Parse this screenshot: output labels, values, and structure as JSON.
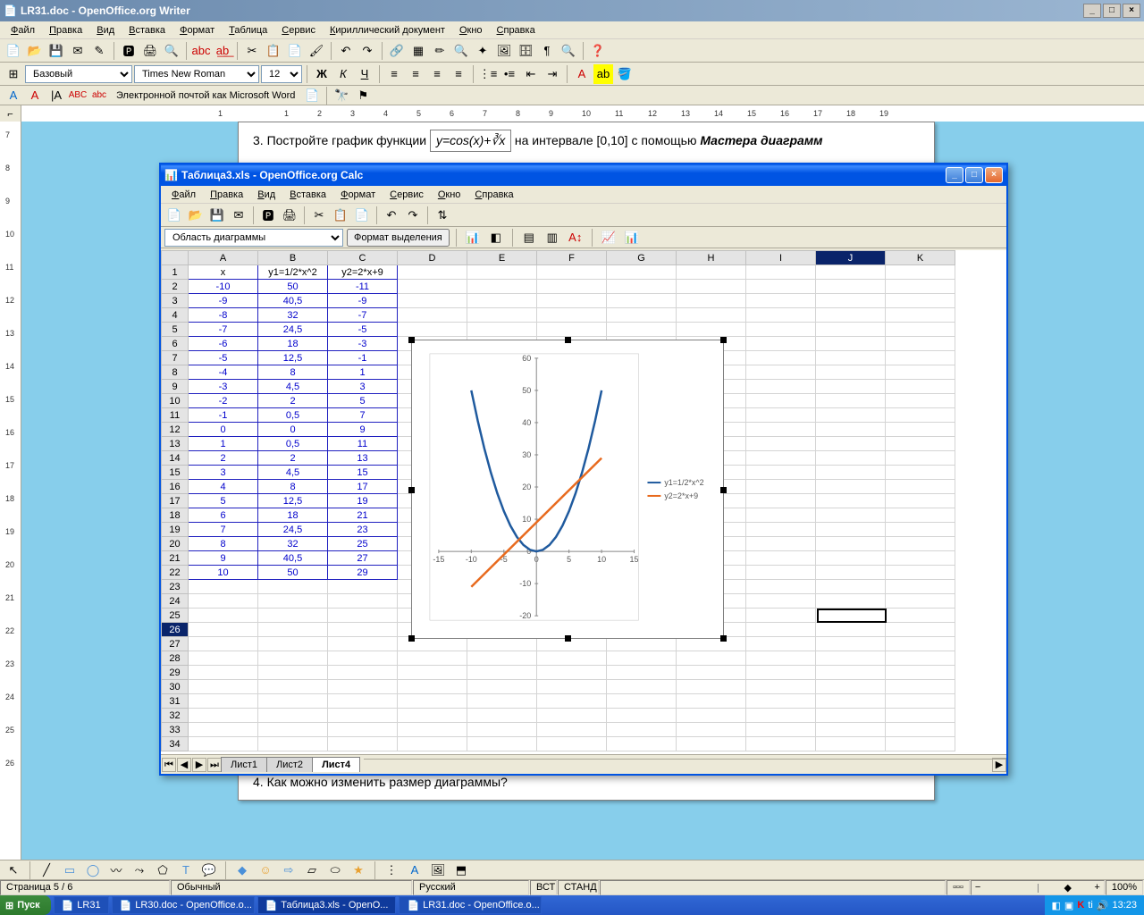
{
  "writer": {
    "title": "LR31.doc - OpenOffice.org Writer",
    "menu": [
      "Файл",
      "Правка",
      "Вид",
      "Вставка",
      "Формат",
      "Таблица",
      "Сервис",
      "Кириллический документ",
      "Окно",
      "Справка"
    ],
    "style_combo": "Базовый",
    "font_combo": "Times New Roman",
    "size_combo": "12",
    "hyperlink_label": "Электронной почтой как Microsoft Word",
    "doc_line1_prefix": "3. Постройте график функции ",
    "doc_line1_formula": "y=cos(x)+∛x",
    "doc_line1_suffix": "  на интервале  [0,10]  с помощью ",
    "doc_line1_italic": "Мастера диаграмм",
    "doc_line2": "4. Как можно изменить размер диаграммы?",
    "ruler_marks": [
      "1",
      "",
      "1",
      "2",
      "3",
      "4",
      "5",
      "6",
      "7",
      "8",
      "9",
      "10",
      "11",
      "12",
      "13",
      "14",
      "15",
      "16",
      "17",
      "18",
      "19"
    ],
    "vruler_marks": [
      "7",
      "8",
      "9",
      "10",
      "11",
      "12",
      "13",
      "14",
      "15",
      "16",
      "17",
      "18",
      "19",
      "20",
      "21",
      "22",
      "23",
      "24",
      "25",
      "26"
    ]
  },
  "calc": {
    "title": "Таблица3.xls - OpenOffice.org Calc",
    "menu": [
      "Файл",
      "Правка",
      "Вид",
      "Вставка",
      "Формат",
      "Сервис",
      "Окно",
      "Справка"
    ],
    "namebox": "Область диаграммы",
    "format_btn": "Формат выделения",
    "columns": [
      "A",
      "B",
      "C",
      "D",
      "E",
      "F",
      "G",
      "H",
      "I",
      "J",
      "K"
    ],
    "headers": [
      "x",
      "y1=1/2*x^2",
      "y2=2*x+9"
    ],
    "rows": [
      [
        "-10",
        "50",
        "-11"
      ],
      [
        "-9",
        "40,5",
        "-9"
      ],
      [
        "-8",
        "32",
        "-7"
      ],
      [
        "-7",
        "24,5",
        "-5"
      ],
      [
        "-6",
        "18",
        "-3"
      ],
      [
        "-5",
        "12,5",
        "-1"
      ],
      [
        "-4",
        "8",
        "1"
      ],
      [
        "-3",
        "4,5",
        "3"
      ],
      [
        "-2",
        "2",
        "5"
      ],
      [
        "-1",
        "0,5",
        "7"
      ],
      [
        "0",
        "0",
        "9"
      ],
      [
        "1",
        "0,5",
        "11"
      ],
      [
        "2",
        "2",
        "13"
      ],
      [
        "3",
        "4,5",
        "15"
      ],
      [
        "4",
        "8",
        "17"
      ],
      [
        "5",
        "12,5",
        "19"
      ],
      [
        "6",
        "18",
        "21"
      ],
      [
        "7",
        "24,5",
        "23"
      ],
      [
        "8",
        "32",
        "25"
      ],
      [
        "9",
        "40,5",
        "27"
      ],
      [
        "10",
        "50",
        "29"
      ]
    ],
    "total_rows": 34,
    "active_row": 26,
    "selected_col": "J",
    "sheets": [
      "Лист1",
      "Лист2",
      "Лист4"
    ],
    "active_sheet": 2
  },
  "chart": {
    "type": "line",
    "legend": [
      "y1=1/2*x^2",
      "y2=2*x+9"
    ],
    "colors": {
      "y1": "#1f5a9e",
      "y2": "#e86a1e",
      "axis": "#888888",
      "text": "#555555",
      "bg": "#ffffff"
    },
    "x_ticks": [
      -15,
      -10,
      -5,
      0,
      5,
      10,
      15
    ],
    "y_ticks": [
      -20,
      -10,
      0,
      10,
      20,
      30,
      40,
      50,
      60
    ],
    "xlim": [
      -15,
      15
    ],
    "ylim": [
      -20,
      60
    ],
    "series_y1_x": [
      -10,
      -9,
      -8,
      -7,
      -6,
      -5,
      -4,
      -3,
      -2,
      -1,
      0,
      1,
      2,
      3,
      4,
      5,
      6,
      7,
      8,
      9,
      10
    ],
    "series_y1_y": [
      50,
      40.5,
      32,
      24.5,
      18,
      12.5,
      8,
      4.5,
      2,
      0.5,
      0,
      0.5,
      2,
      4.5,
      8,
      12.5,
      18,
      24.5,
      32,
      40.5,
      50
    ],
    "series_y2_x": [
      -10,
      10
    ],
    "series_y2_y": [
      -11,
      29
    ],
    "line_width_y1": 2.5,
    "line_width_y2": 2.5,
    "font_size": 9
  },
  "status": {
    "page": "Страница  5 / 6",
    "style": "Обычный",
    "lang": "Русский",
    "ins": "ВСТ",
    "std": "СТАНД",
    "zoom": "100%"
  },
  "taskbar": {
    "start": "Пуск",
    "tasks": [
      "LR31",
      "LR30.doc - OpenOffice.o...",
      "Таблица3.xls - OpenO...",
      "LR31.doc - OpenOffice.o..."
    ],
    "active_task": 2,
    "time": "13:23",
    "tray_lang": "K"
  }
}
